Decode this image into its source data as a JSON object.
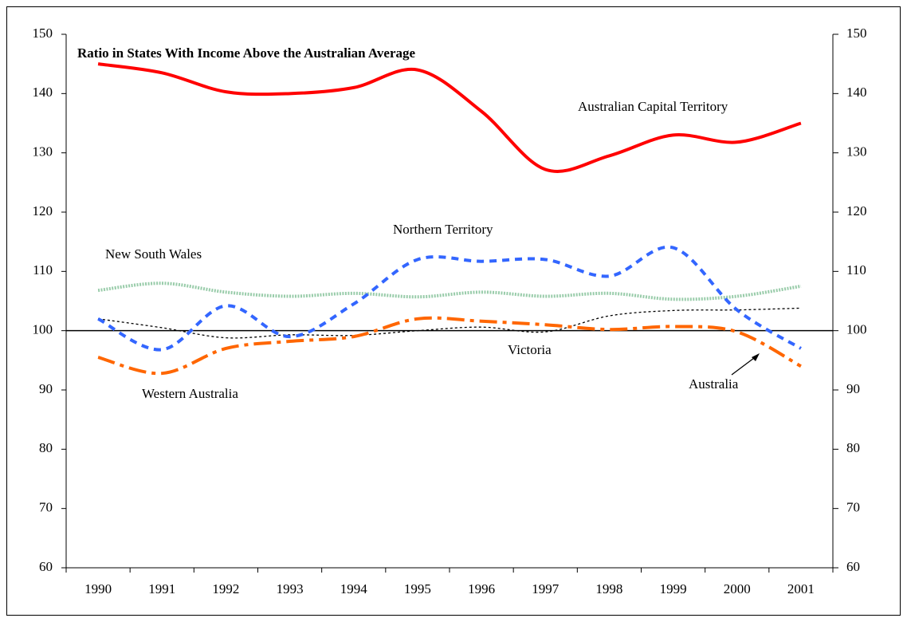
{
  "chart_data": {
    "type": "line",
    "title": "Ratio in States With Income Above the Australian Average",
    "categories": [
      "1990",
      "1991",
      "1992",
      "1993",
      "1994",
      "1995",
      "1996",
      "1997",
      "1998",
      "1999",
      "2000",
      "2001"
    ],
    "series": [
      {
        "name": "Australian Capital Territory",
        "color": "#ff0000",
        "values": [
          145,
          143.5,
          140.3,
          140,
          141,
          144,
          137,
          127.2,
          129.5,
          133,
          131.8,
          135
        ]
      },
      {
        "name": "Northern Territory",
        "color": "#3366ff",
        "values": [
          102,
          96.8,
          104.2,
          99,
          104.5,
          112,
          111.7,
          112,
          109.2,
          114,
          103.5,
          97
        ]
      },
      {
        "name": "New South Wales",
        "color": "#99ccaa",
        "values": [
          106.8,
          108,
          106.5,
          105.8,
          106.3,
          105.7,
          106.5,
          105.8,
          106.3,
          105.3,
          105.8,
          107.5
        ]
      },
      {
        "name": "Victoria",
        "color": "#000000",
        "values": [
          102,
          100.5,
          98.8,
          99.3,
          99.2,
          100,
          100.6,
          99.8,
          102.5,
          103.4,
          103.5,
          103.8
        ]
      },
      {
        "name": "Western Australia",
        "color": "#ff6600",
        "values": [
          95.5,
          92.8,
          97,
          98.2,
          99,
          102,
          101.6,
          101,
          100.2,
          100.7,
          99.8,
          94
        ]
      },
      {
        "name": "Australia",
        "color": "#000000",
        "values": [
          100,
          100,
          100,
          100,
          100,
          100,
          100,
          100,
          100,
          100,
          100,
          100
        ]
      }
    ],
    "ylim": [
      60,
      150
    ],
    "yticks": [
      60,
      70,
      80,
      90,
      100,
      110,
      120,
      130,
      140,
      150
    ],
    "y2lim": [
      60,
      150
    ],
    "y2ticks": [
      60,
      70,
      80,
      90,
      100,
      110,
      120,
      130,
      140,
      150
    ]
  }
}
